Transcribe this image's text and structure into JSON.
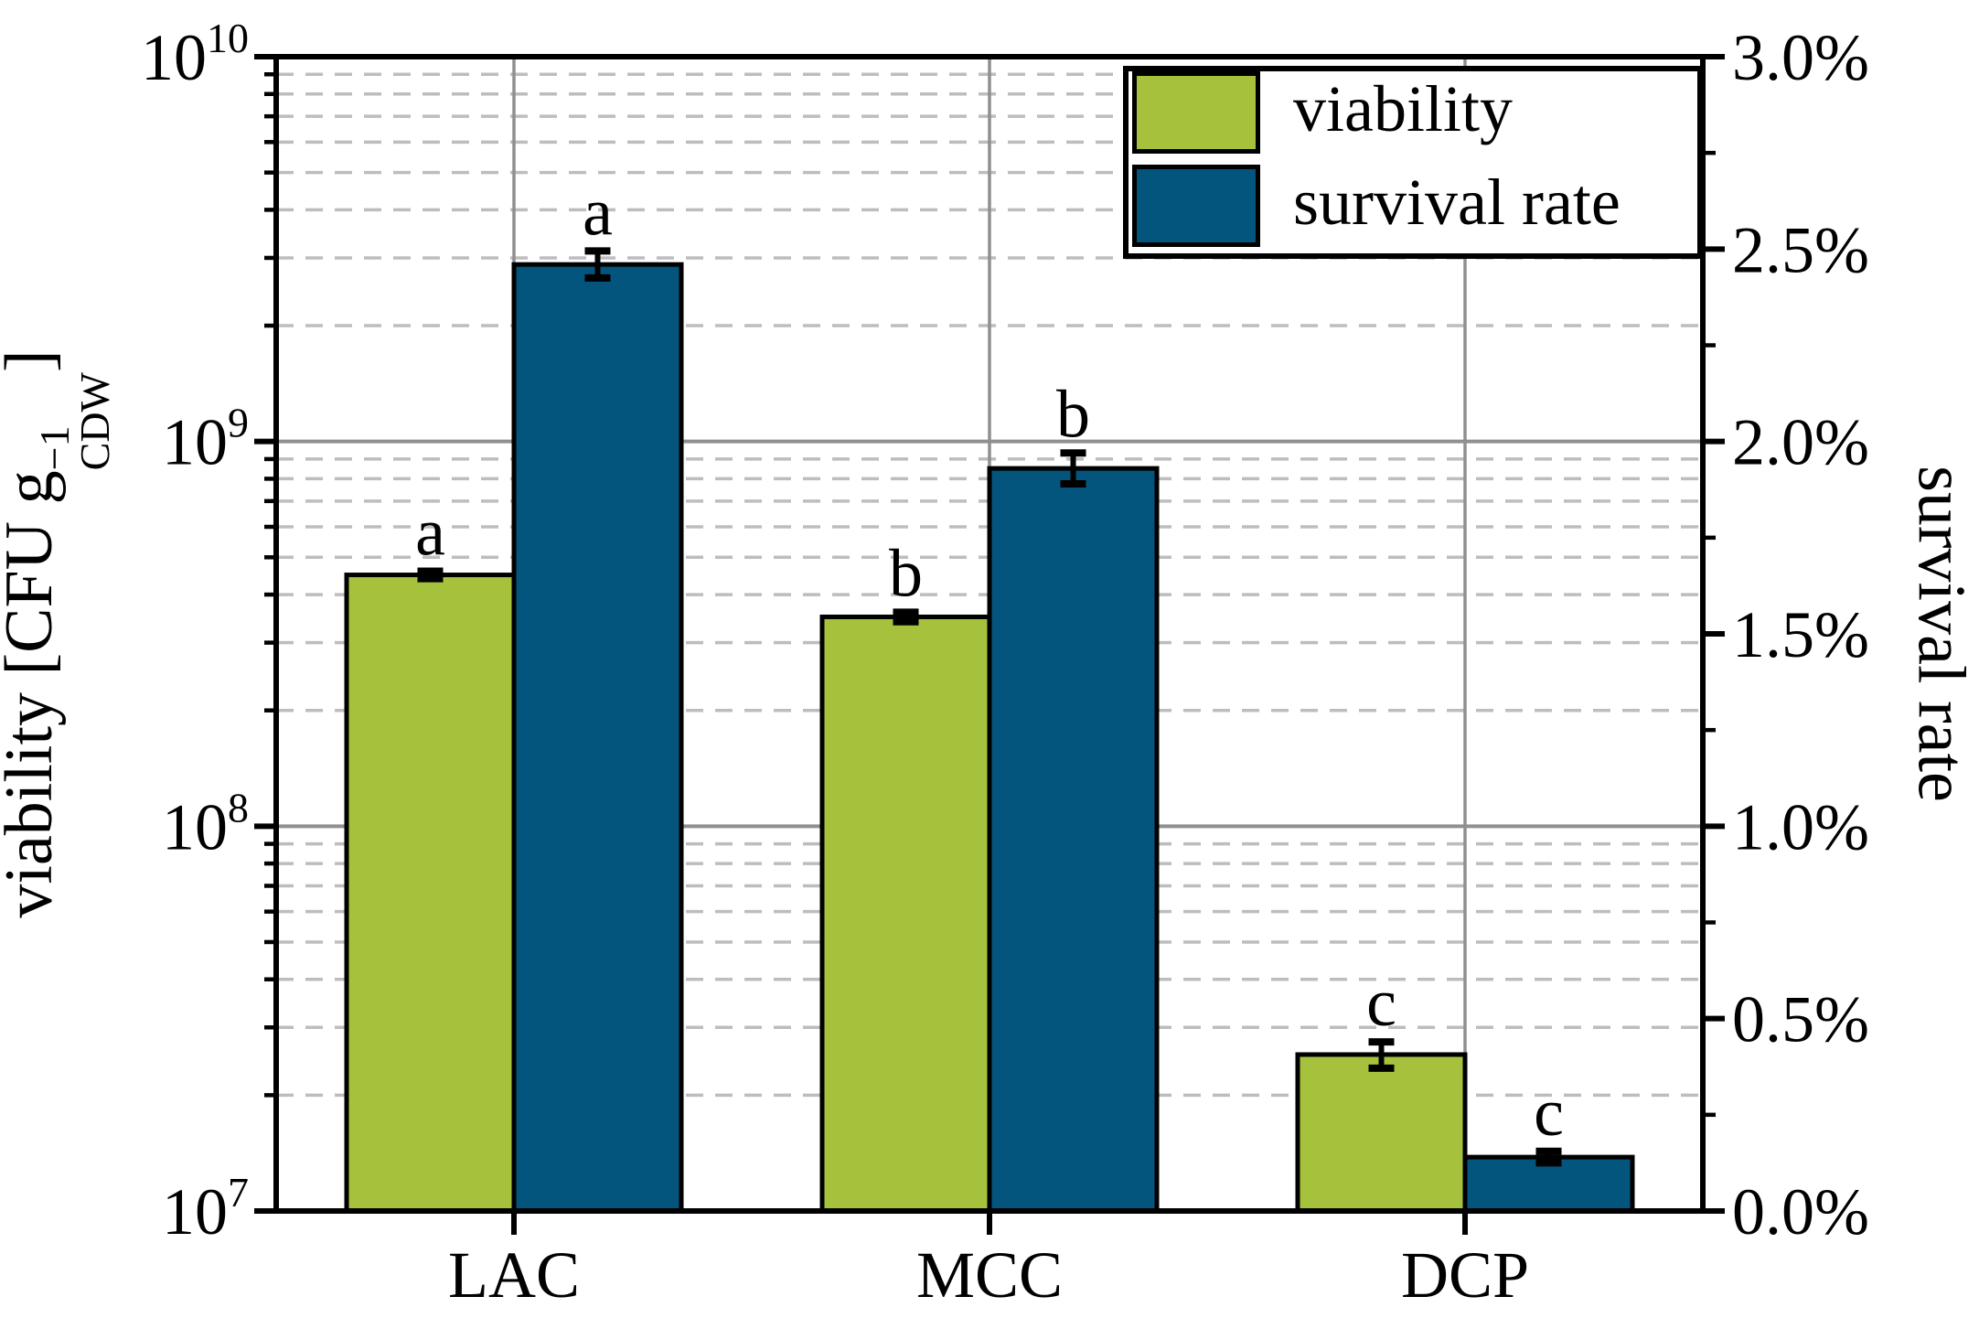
{
  "chart_data": {
    "type": "bar",
    "categories": [
      "LAC",
      "MCC",
      "DCP"
    ],
    "series": [
      {
        "name": "viability",
        "axis": "left",
        "color": "#a6c23c",
        "values": [
          450000000.0,
          350000000.0,
          25500000.0
        ],
        "errors": [
          10000000.0,
          10000000.0,
          2000000.0
        ],
        "letters": [
          "a",
          "b",
          "c"
        ]
      },
      {
        "name": "survival rate",
        "axis": "right",
        "color": "#03557d",
        "values": [
          2.46,
          1.93,
          0.14
        ],
        "errors": [
          0.035,
          0.04,
          0.015
        ],
        "letters": [
          "a",
          "b",
          "c"
        ]
      }
    ],
    "left_axis": {
      "label_prefix": "viability [CFU g",
      "label_sup": "−1",
      "label_sub": "CDW",
      "label_suffix": "]",
      "scale": "log",
      "min": 10000000.0,
      "max": 10000000000.0,
      "tick_exponents": [
        10,
        9,
        8,
        7
      ],
      "tick_base": "10"
    },
    "right_axis": {
      "label": "survival rate",
      "scale": "linear",
      "min": 0,
      "max": 3,
      "major_step": 0.5,
      "minor_step": 0.25,
      "tick_labels": [
        "3.0%",
        "2.5%",
        "2.0%",
        "1.5%",
        "1.0%",
        "0.5%",
        "0.0%"
      ]
    },
    "grid": {
      "major_color": "#8f8f8f",
      "minor_color": "#bdbdbd",
      "frame_color": "#000000",
      "error_bar_color": "#000000",
      "legend_position": "top-right"
    }
  },
  "legend": {
    "items": [
      {
        "label": "viability",
        "color": "#a6c23c"
      },
      {
        "label": "survival rate",
        "color": "#03557d"
      }
    ]
  }
}
